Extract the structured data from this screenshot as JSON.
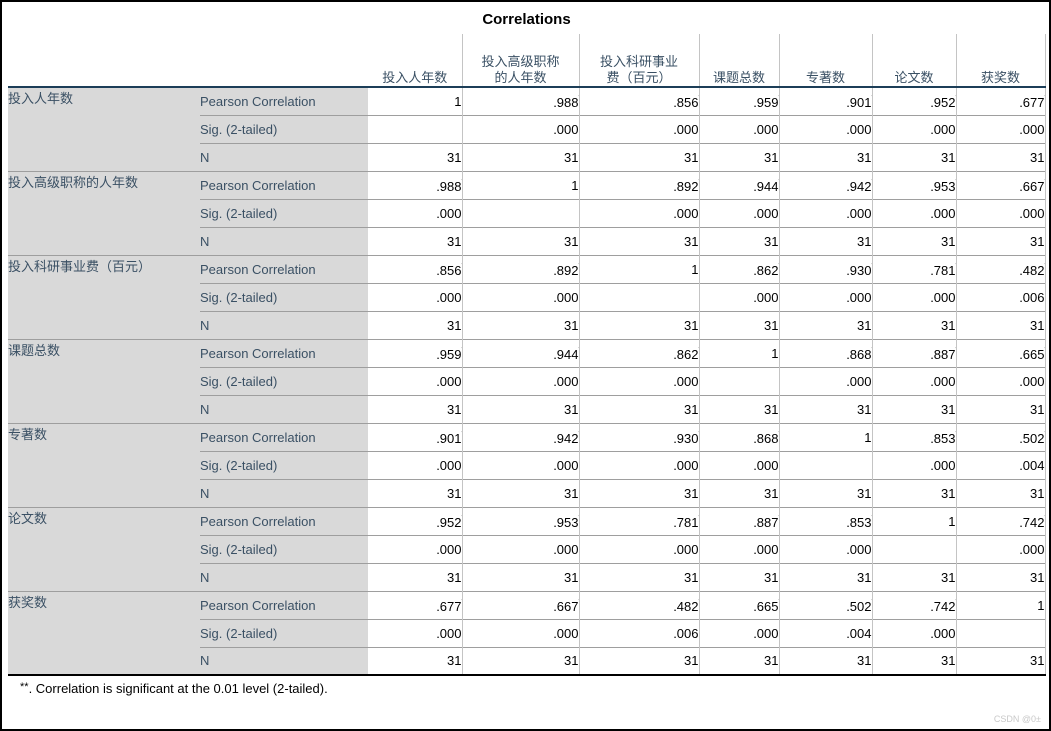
{
  "title": "Correlations",
  "table": {
    "column_headers": [
      "投入人年数",
      "投入高级职称\n的人年数",
      "投入科研事业\n费（百元）",
      "课题总数",
      "专著数",
      "论文数",
      "获奖数"
    ],
    "stat_labels": {
      "pearson": "Pearson Correlation",
      "sig": "Sig. (2-tailed)",
      "n": "N"
    },
    "sig_marker": "**",
    "rows": [
      {
        "label": "投入人年数",
        "pearson": [
          "1",
          ".988**",
          ".856**",
          ".959**",
          ".901**",
          ".952**",
          ".677**"
        ],
        "sig": [
          "",
          ".000",
          ".000",
          ".000",
          ".000",
          ".000",
          ".000"
        ],
        "n": [
          "31",
          "31",
          "31",
          "31",
          "31",
          "31",
          "31"
        ]
      },
      {
        "label": "投入高级职称的人年数",
        "pearson": [
          ".988**",
          "1",
          ".892**",
          ".944**",
          ".942**",
          ".953**",
          ".667**"
        ],
        "sig": [
          ".000",
          "",
          ".000",
          ".000",
          ".000",
          ".000",
          ".000"
        ],
        "n": [
          "31",
          "31",
          "31",
          "31",
          "31",
          "31",
          "31"
        ]
      },
      {
        "label": "投入科研事业费（百元）",
        "pearson": [
          ".856**",
          ".892**",
          "1",
          ".862**",
          ".930**",
          ".781**",
          ".482**"
        ],
        "sig": [
          ".000",
          ".000",
          "",
          ".000",
          ".000",
          ".000",
          ".006"
        ],
        "n": [
          "31",
          "31",
          "31",
          "31",
          "31",
          "31",
          "31"
        ]
      },
      {
        "label": "课题总数",
        "pearson": [
          ".959**",
          ".944**",
          ".862**",
          "1",
          ".868**",
          ".887**",
          ".665**"
        ],
        "sig": [
          ".000",
          ".000",
          ".000",
          "",
          ".000",
          ".000",
          ".000"
        ],
        "n": [
          "31",
          "31",
          "31",
          "31",
          "31",
          "31",
          "31"
        ]
      },
      {
        "label": "专著数",
        "pearson": [
          ".901**",
          ".942**",
          ".930**",
          ".868**",
          "1",
          ".853**",
          ".502**"
        ],
        "sig": [
          ".000",
          ".000",
          ".000",
          ".000",
          "",
          ".000",
          ".004"
        ],
        "n": [
          "31",
          "31",
          "31",
          "31",
          "31",
          "31",
          "31"
        ]
      },
      {
        "label": "论文数",
        "pearson": [
          ".952**",
          ".953**",
          ".781**",
          ".887**",
          ".853**",
          "1",
          ".742**"
        ],
        "sig": [
          ".000",
          ".000",
          ".000",
          ".000",
          ".000",
          "",
          ".000"
        ],
        "n": [
          "31",
          "31",
          "31",
          "31",
          "31",
          "31",
          "31"
        ]
      },
      {
        "label": "获奖数",
        "pearson": [
          ".677**",
          ".667**",
          ".482**",
          ".665**",
          ".502**",
          ".742**",
          "1"
        ],
        "sig": [
          ".000",
          ".000",
          ".006",
          ".000",
          ".004",
          ".000",
          ""
        ],
        "n": [
          "31",
          "31",
          "31",
          "31",
          "31",
          "31",
          "31"
        ]
      }
    ]
  },
  "footnote": {
    "marker": "**",
    "text": ". Correlation is significant at the 0.01 level (2-tailed)."
  },
  "watermark": "CSDN @0±",
  "colors": {
    "label_bg": "#d9d9d9",
    "label_text": "#3a5064",
    "header_rule": "#1c3e58",
    "grid_line": "#9e9e9e",
    "vertical_line": "#c4c4c4",
    "bottom_rule": "#000000"
  }
}
